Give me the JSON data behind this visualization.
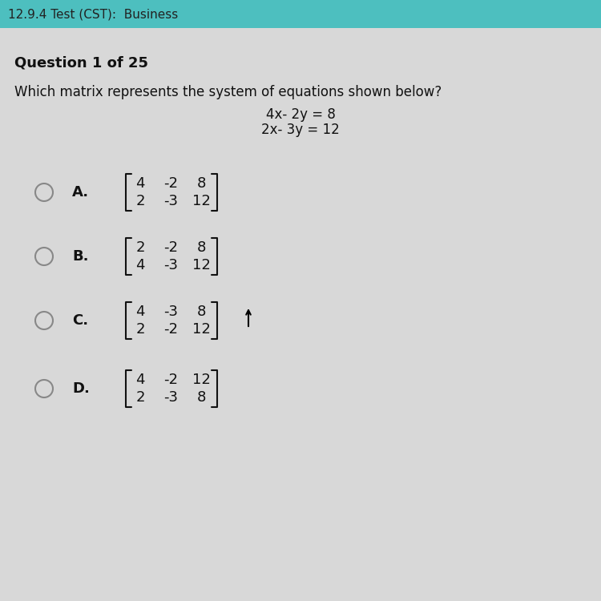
{
  "header_text": "12.9.4 Test (CST):  Business",
  "question_label": "Question 1 of 25",
  "question_text": "Which matrix represents the system of equations shown below?",
  "eq1": "4x- 2y = 8",
  "eq2": "2x- 3y = 12",
  "options": [
    {
      "letter": "A.",
      "matrix": [
        [
          4,
          -2,
          8
        ],
        [
          2,
          -3,
          12
        ]
      ]
    },
    {
      "letter": "B.",
      "matrix": [
        [
          2,
          -2,
          8
        ],
        [
          4,
          -3,
          12
        ]
      ]
    },
    {
      "letter": "C.",
      "matrix": [
        [
          4,
          -3,
          8
        ],
        [
          2,
          -2,
          12
        ]
      ]
    },
    {
      "letter": "D.",
      "matrix": [
        [
          4,
          -2,
          12
        ],
        [
          2,
          -3,
          8
        ]
      ]
    }
  ],
  "bg_color": "#d8d8d8",
  "header_bg": "#4dbfbf",
  "header_text_color": "#222222",
  "body_text_color": "#111111",
  "circle_color": "#888888"
}
